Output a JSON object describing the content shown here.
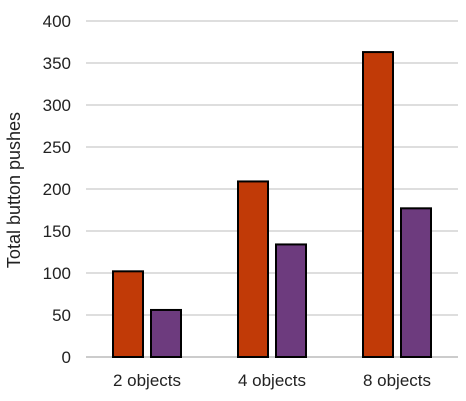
{
  "chart_data": {
    "type": "bar",
    "categories": [
      "2 objects",
      "4 objects",
      "8 objects"
    ],
    "series": [
      {
        "values": [
          102,
          209,
          363
        ],
        "color": "#c13a07"
      },
      {
        "values": [
          56,
          134,
          177
        ],
        "color": "#6d3b7e"
      }
    ],
    "ylabel": "Total button pushes",
    "xlabel": "",
    "ylim": [
      0,
      400
    ],
    "yticks": [
      "0",
      "50",
      "100",
      "150",
      "200",
      "250",
      "300",
      "350",
      "400"
    ],
    "grid": true,
    "legend": "none"
  }
}
